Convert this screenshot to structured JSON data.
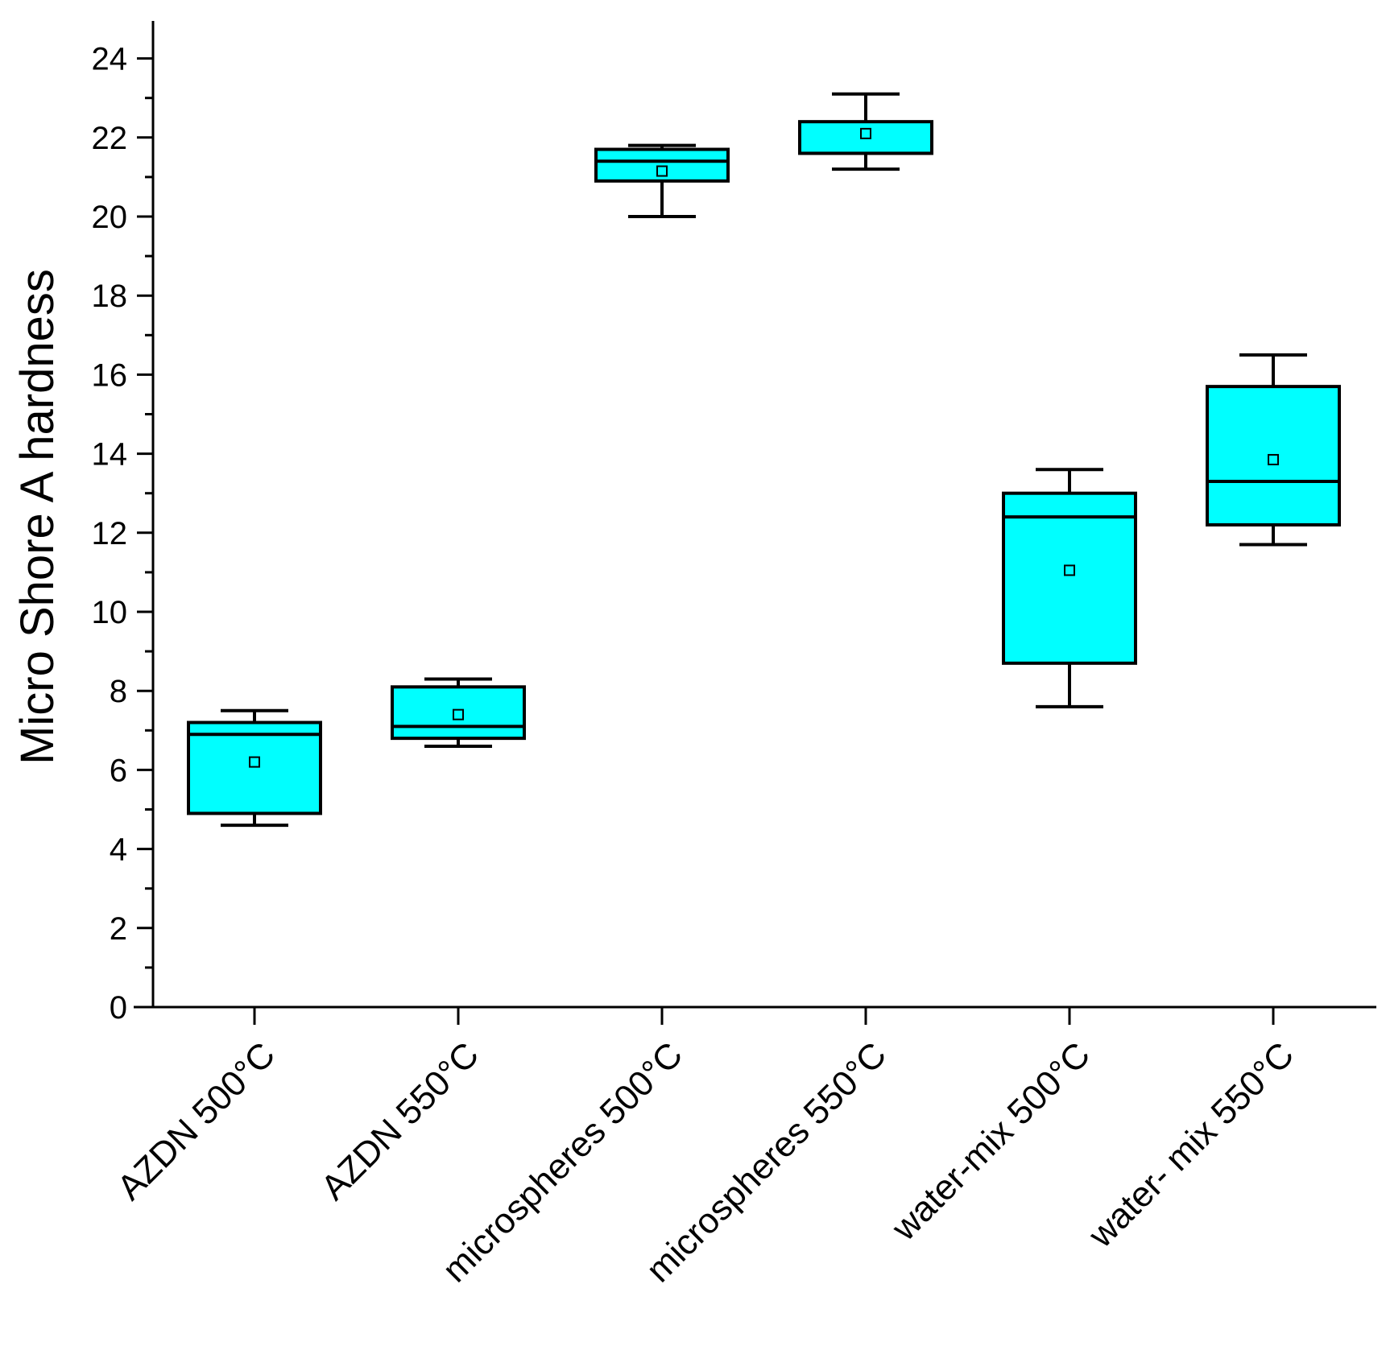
{
  "chart_data": {
    "type": "box",
    "title": "",
    "xlabel": "",
    "ylabel": "Micro Shore A hardness",
    "ylim": [
      0,
      24.5
    ],
    "yticks": [
      0,
      2,
      4,
      6,
      8,
      10,
      12,
      14,
      16,
      18,
      20,
      22,
      24
    ],
    "ytick_labels": [
      "0",
      "2",
      "4",
      "6",
      "8",
      "10",
      "12",
      "14",
      "16",
      "18",
      "20",
      "22",
      "24"
    ],
    "grid": false,
    "box_fill": "#00FFFF",
    "box_stroke": "#000000",
    "categories": [
      "AZDN 500°C",
      "AZDN 550°C",
      "microspheres 500°C",
      "microspheres 550°C",
      "water-mix 500°C",
      "water- mix 550°C"
    ],
    "boxes": [
      {
        "whisker_low": 4.6,
        "q1": 4.9,
        "median": 6.9,
        "q3": 7.2,
        "whisker_high": 7.5,
        "mean": 6.2
      },
      {
        "whisker_low": 6.6,
        "q1": 6.8,
        "median": 7.1,
        "q3": 8.1,
        "whisker_high": 8.3,
        "mean": 7.4
      },
      {
        "whisker_low": 20.0,
        "q1": 20.9,
        "median": 21.4,
        "q3": 21.7,
        "whisker_high": 21.8,
        "mean": 21.15
      },
      {
        "whisker_low": 21.2,
        "q1": 21.6,
        "median": 21.6,
        "q3": 22.4,
        "whisker_high": 23.1,
        "mean": 22.1
      },
      {
        "whisker_low": 7.6,
        "q1": 8.7,
        "median": 12.4,
        "q3": 13.0,
        "whisker_high": 13.6,
        "mean": 11.05
      },
      {
        "whisker_low": 11.7,
        "q1": 12.2,
        "median": 13.3,
        "q3": 15.7,
        "whisker_high": 16.5,
        "mean": 13.85
      }
    ]
  }
}
